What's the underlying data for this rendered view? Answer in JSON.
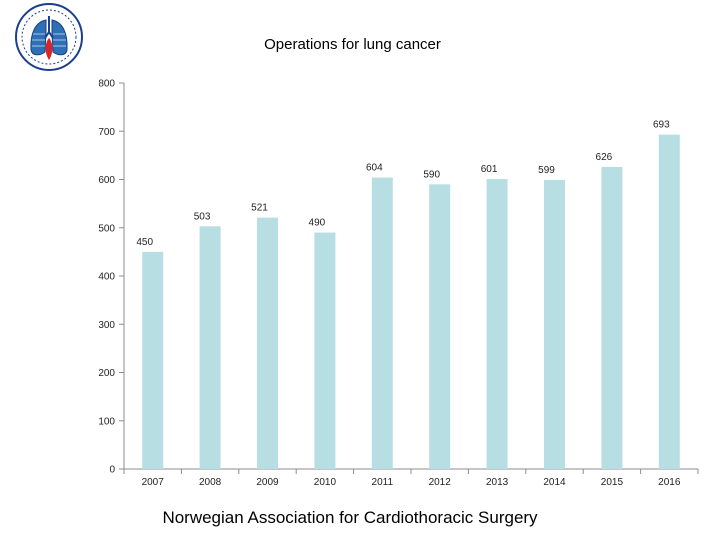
{
  "chart_data": {
    "type": "bar",
    "title": "Operations for lung cancer",
    "categories": [
      "2007",
      "2008",
      "2009",
      "2010",
      "2011",
      "2012",
      "2013",
      "2014",
      "2015",
      "2016"
    ],
    "values": [
      450,
      503,
      521,
      490,
      604,
      590,
      601,
      599,
      626,
      693
    ],
    "data_labels": [
      "450",
      "503",
      "521",
      "490",
      "604",
      "590",
      "601",
      "599",
      "626",
      "693"
    ],
    "ylim": [
      0,
      800
    ],
    "yticks": [
      0,
      100,
      200,
      300,
      400,
      500,
      600,
      700,
      800
    ],
    "xlabel": "",
    "ylabel": "",
    "grid": false,
    "legend": "none",
    "bar_color": "#b7dfe3"
  },
  "footer": {
    "text": "Norwegian Association for Cardiothoracic Surgery"
  },
  "logo": {
    "icon": "lungs-emblem-icon"
  }
}
